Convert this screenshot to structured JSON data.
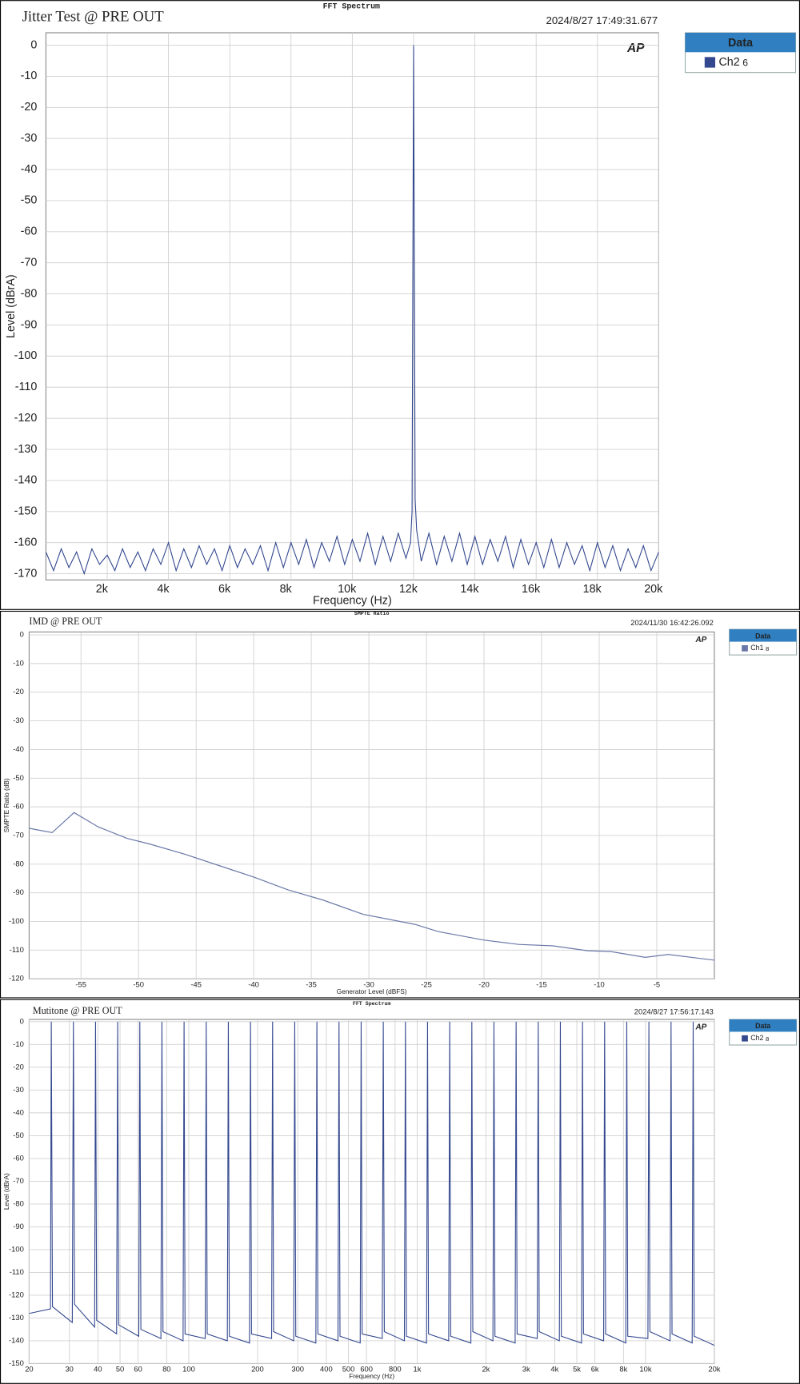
{
  "chart_data": [
    {
      "type": "line",
      "title": "Jitter Test @ PRE OUT",
      "subtitle": "FFT Spectrum",
      "date": "2024/8/27 17:49:31.677",
      "logo": "AP",
      "legend_title": "Data",
      "x_label": "Frequency (Hz)",
      "y_label": "Level (dBrA)",
      "xlim": [
        0,
        20000
      ],
      "ylim": [
        -172,
        4
      ],
      "grid": true,
      "xticks": [
        {
          "value": 2000,
          "label": "2k"
        },
        {
          "value": 4000,
          "label": "4k"
        },
        {
          "value": 6000,
          "label": "6k"
        },
        {
          "value": 8000,
          "label": "8k"
        },
        {
          "value": 10000,
          "label": "10k"
        },
        {
          "value": 12000,
          "label": "12k"
        },
        {
          "value": 14000,
          "label": "14k"
        },
        {
          "value": 16000,
          "label": "16k"
        },
        {
          "value": 18000,
          "label": "18k"
        },
        {
          "value": 20000,
          "label": "20k"
        }
      ],
      "yticks": [
        0,
        -10,
        -20,
        -30,
        -40,
        -50,
        -60,
        -70,
        -80,
        -90,
        -100,
        -110,
        -120,
        -130,
        -140,
        -150,
        -160,
        -170
      ],
      "x": [
        0,
        250,
        500,
        750,
        1000,
        1250,
        1500,
        1750,
        2000,
        2250,
        2500,
        2750,
        3000,
        3250,
        3500,
        3750,
        4000,
        4250,
        4500,
        4750,
        5000,
        5250,
        5500,
        5750,
        6000,
        6250,
        6500,
        6750,
        7000,
        7250,
        7500,
        7750,
        8000,
        8250,
        8500,
        8750,
        9000,
        9250,
        9500,
        9750,
        10000,
        10250,
        10500,
        10750,
        11000,
        11250,
        11500,
        11750,
        11900,
        11950,
        12000,
        12050,
        12100,
        12250,
        12500,
        12750,
        13000,
        13250,
        13500,
        13750,
        14000,
        14250,
        14500,
        14750,
        15000,
        15250,
        15500,
        15750,
        16000,
        16250,
        16500,
        16750,
        17000,
        17250,
        17500,
        17750,
        18000,
        18250,
        18500,
        18750,
        19000,
        19250,
        19500,
        19750,
        20000
      ],
      "series": [
        {
          "name": "Ch2",
          "number": 6,
          "color": "#34488f",
          "values": [
            -163,
            -169,
            -162,
            -168,
            -163,
            -170,
            -162,
            -167,
            -164,
            -169,
            -162,
            -168,
            -163,
            -169,
            -162,
            -167,
            -160,
            -169,
            -162,
            -168,
            -161,
            -167,
            -162,
            -169,
            -161,
            -168,
            -162,
            -167,
            -161,
            -169,
            -160,
            -168,
            -160,
            -167,
            -159,
            -168,
            -160,
            -166,
            -158,
            -167,
            -159,
            -166,
            -157,
            -167,
            -158,
            -166,
            -157,
            -165,
            -160,
            -150,
            0,
            -146,
            -156,
            -166,
            -157,
            -167,
            -158,
            -166,
            -157,
            -167,
            -158,
            -167,
            -159,
            -166,
            -158,
            -168,
            -159,
            -167,
            -160,
            -168,
            -159,
            -168,
            -160,
            -167,
            -161,
            -169,
            -160,
            -168,
            -161,
            -169,
            -162,
            -168,
            -161,
            -169,
            -163
          ]
        }
      ]
    },
    {
      "type": "line",
      "title": "IMD @ PRE OUT",
      "subtitle": "SMPTE Ratio",
      "date": "2024/11/30 16:42:26.092",
      "logo": "AP",
      "legend_title": "Data",
      "x_label": "Generator Level (dBFS)",
      "y_label": "SMPTE Ratio (dB)",
      "xlim": [
        -59.5,
        0
      ],
      "ylim": [
        -120,
        1
      ],
      "grid": true,
      "xticks": [
        -55,
        -50,
        -45,
        -40,
        -35,
        -30,
        -25,
        -20,
        -15,
        -10,
        -5
      ],
      "yticks": [
        0,
        -10,
        -20,
        -30,
        -40,
        -50,
        -60,
        -70,
        -80,
        -90,
        -100,
        -110,
        -120
      ],
      "x": [
        -59.5,
        -57.5,
        -55.6,
        -53.5,
        -51,
        -49,
        -46,
        -43,
        -40,
        -37,
        -34,
        -30.5,
        -26,
        -24,
        -20,
        -17,
        -14,
        -11,
        -9,
        -6,
        -4,
        0
      ],
      "series": [
        {
          "name": "Ch1",
          "number": 8,
          "color": "#6a78a8",
          "values": [
            -67.5,
            -69,
            -62,
            -67,
            -71,
            -73,
            -76.5,
            -80.5,
            -84.5,
            -89,
            -92.5,
            -97.5,
            -101,
            -103.5,
            -106.5,
            -108,
            -108.5,
            -110.2,
            -110.5,
            -112.5,
            -111.5,
            -113.5
          ]
        }
      ]
    },
    {
      "type": "line",
      "title": "Mutitone @ PRE OUT",
      "subtitle": "FFT Spectrum",
      "date": "2024/8/27 17:56:17.143",
      "logo": "AP",
      "legend_title": "Data",
      "x_label": "Frequency (Hz)",
      "y_label": "Level (dBrA)",
      "xscale": "log",
      "xlim": [
        20,
        20000
      ],
      "ylim": [
        -150,
        1
      ],
      "grid": true,
      "xticks": [
        20,
        30,
        40,
        50,
        60,
        80,
        100,
        200,
        300,
        400,
        500,
        600,
        800,
        {
          "value": 1000,
          "label": "1k"
        },
        {
          "value": 2000,
          "label": "2k"
        },
        {
          "value": 3000,
          "label": "3k"
        },
        {
          "value": 4000,
          "label": "4k"
        },
        {
          "value": 5000,
          "label": "5k"
        },
        {
          "value": 6000,
          "label": "6k"
        },
        {
          "value": 8000,
          "label": "8k"
        },
        {
          "value": 10000,
          "label": "10k"
        },
        {
          "value": 20000,
          "label": "20k"
        }
      ],
      "yticks": [
        0,
        -10,
        -20,
        -30,
        -40,
        -50,
        -60,
        -70,
        -80,
        -90,
        -100,
        -110,
        -120,
        -130,
        -140,
        -150
      ],
      "x": [
        20,
        24.8,
        25,
        25.3,
        30.9,
        31.25,
        31.6,
        38.7,
        39.06,
        39.5,
        48.3,
        48.83,
        49.3,
        60.4,
        61.04,
        61.7,
        75.5,
        76.29,
        77.1,
        94.4,
        95.37,
        96.3,
        118,
        119.2,
        120.4,
        147.5,
        149,
        150.5,
        184.4,
        186.3,
        188.2,
        230.5,
        232.8,
        235.1,
        288,
        291,
        294,
        360,
        363.8,
        367.4,
        450,
        454.7,
        459.2,
        563,
        568.4,
        574,
        703,
        710.5,
        718,
        879,
        888.2,
        897,
        1099,
        1110,
        1121,
        1374,
        1388,
        1402,
        1718,
        1735,
        1752,
        2146,
        2168,
        2190,
        2684,
        2711,
        2738,
        3354,
        3388,
        3422,
        4193,
        4235,
        4277,
        5241,
        5294,
        5347,
        6551,
        6617,
        6683,
        8189,
        8272,
        8355,
        10237,
        10340,
        10443,
        12796,
        12925,
        13054,
        15994,
        16156,
        16318,
        20000
      ],
      "series": [
        {
          "name": "Ch2",
          "number": 8,
          "color": "#34488f",
          "values": [
            -128,
            -126,
            0,
            -125,
            -132,
            0,
            -124,
            -134,
            0,
            -131,
            -137,
            0,
            -133,
            -138,
            0,
            -135,
            -139,
            0,
            -136,
            -140,
            0,
            -137,
            -139,
            0,
            -137,
            -140,
            0,
            -138,
            -141,
            0,
            -137,
            -139,
            0,
            -136,
            -140,
            0,
            -138,
            -141,
            0,
            -137,
            -140,
            0,
            -138,
            -141,
            0,
            -137,
            -139,
            0,
            -136,
            -140,
            0,
            -138,
            -141,
            0,
            -137,
            -140,
            0,
            -138,
            -141,
            0,
            -136,
            -140,
            0,
            -138,
            -141,
            0,
            -137,
            -139,
            0,
            -136,
            -140,
            0,
            -138,
            -141,
            0,
            -137,
            -140,
            0,
            -137,
            -141,
            0,
            -138,
            -139,
            0,
            -136,
            -140,
            0,
            -137,
            -141,
            0,
            -138,
            -142
          ]
        }
      ]
    }
  ]
}
